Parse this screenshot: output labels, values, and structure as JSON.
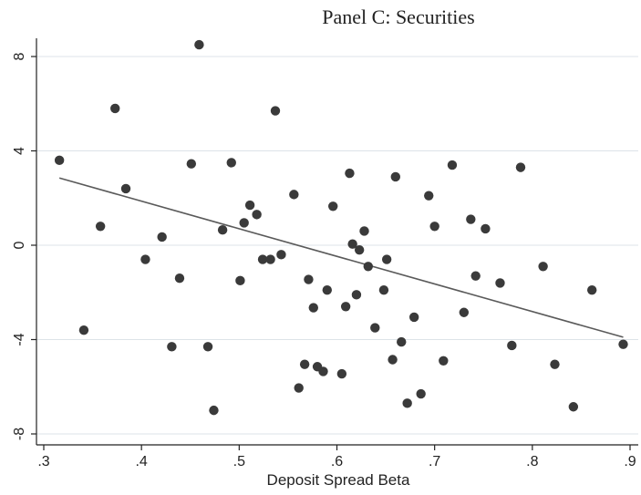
{
  "chart_data": {
    "type": "scatter",
    "title": "Panel C: Securities",
    "xlabel": "Deposit Spread Beta",
    "ylabel": "",
    "xlim": [
      0.3,
      0.9
    ],
    "ylim": [
      -8,
      8
    ],
    "x_ticks": [
      0.3,
      0.4,
      0.5,
      0.6,
      0.7,
      0.8,
      0.9
    ],
    "x_tick_labels": [
      ".3",
      ".4",
      ".5",
      ".6",
      ".7",
      ".8",
      ".9"
    ],
    "y_ticks": [
      -8,
      -4,
      0,
      4,
      8
    ],
    "y_tick_labels": [
      "-8",
      "-4",
      "0",
      "4",
      "8"
    ],
    "grid": true,
    "points": [
      {
        "x": 0.316,
        "y": 3.6
      },
      {
        "x": 0.341,
        "y": -3.6
      },
      {
        "x": 0.358,
        "y": 0.8
      },
      {
        "x": 0.373,
        "y": 5.8
      },
      {
        "x": 0.384,
        "y": 2.4
      },
      {
        "x": 0.404,
        "y": -0.6
      },
      {
        "x": 0.421,
        "y": 0.35
      },
      {
        "x": 0.431,
        "y": -4.3
      },
      {
        "x": 0.439,
        "y": -1.4
      },
      {
        "x": 0.451,
        "y": 3.45
      },
      {
        "x": 0.459,
        "y": 8.5
      },
      {
        "x": 0.468,
        "y": -4.3
      },
      {
        "x": 0.474,
        "y": -7.0
      },
      {
        "x": 0.483,
        "y": 0.65
      },
      {
        "x": 0.492,
        "y": 3.5
      },
      {
        "x": 0.501,
        "y": -1.5
      },
      {
        "x": 0.505,
        "y": 0.95
      },
      {
        "x": 0.511,
        "y": 1.7
      },
      {
        "x": 0.518,
        "y": 1.3
      },
      {
        "x": 0.524,
        "y": -0.6
      },
      {
        "x": 0.532,
        "y": -0.6
      },
      {
        "x": 0.537,
        "y": 5.7
      },
      {
        "x": 0.543,
        "y": -0.4
      },
      {
        "x": 0.556,
        "y": 2.15
      },
      {
        "x": 0.561,
        "y": -6.05
      },
      {
        "x": 0.567,
        "y": -5.05
      },
      {
        "x": 0.571,
        "y": -1.45
      },
      {
        "x": 0.576,
        "y": -2.65
      },
      {
        "x": 0.58,
        "y": -5.15
      },
      {
        "x": 0.586,
        "y": -5.35
      },
      {
        "x": 0.59,
        "y": -1.9
      },
      {
        "x": 0.596,
        "y": 1.65
      },
      {
        "x": 0.605,
        "y": -5.45
      },
      {
        "x": 0.609,
        "y": -2.6
      },
      {
        "x": 0.613,
        "y": 3.05
      },
      {
        "x": 0.616,
        "y": 0.05
      },
      {
        "x": 0.62,
        "y": -2.1
      },
      {
        "x": 0.623,
        "y": -0.2
      },
      {
        "x": 0.628,
        "y": 0.6
      },
      {
        "x": 0.632,
        "y": -0.9
      },
      {
        "x": 0.639,
        "y": -3.5
      },
      {
        "x": 0.648,
        "y": -1.9
      },
      {
        "x": 0.651,
        "y": -0.6
      },
      {
        "x": 0.657,
        "y": -4.85
      },
      {
        "x": 0.66,
        "y": 2.9
      },
      {
        "x": 0.666,
        "y": -4.1
      },
      {
        "x": 0.672,
        "y": -6.7
      },
      {
        "x": 0.679,
        "y": -3.05
      },
      {
        "x": 0.686,
        "y": -6.3
      },
      {
        "x": 0.694,
        "y": 2.1
      },
      {
        "x": 0.7,
        "y": 0.8
      },
      {
        "x": 0.709,
        "y": -4.9
      },
      {
        "x": 0.718,
        "y": 3.4
      },
      {
        "x": 0.73,
        "y": -2.85
      },
      {
        "x": 0.737,
        "y": 1.1
      },
      {
        "x": 0.742,
        "y": -1.3
      },
      {
        "x": 0.752,
        "y": 0.7
      },
      {
        "x": 0.767,
        "y": -1.6
      },
      {
        "x": 0.779,
        "y": -4.25
      },
      {
        "x": 0.788,
        "y": 3.3
      },
      {
        "x": 0.811,
        "y": -0.9
      },
      {
        "x": 0.823,
        "y": -5.05
      },
      {
        "x": 0.842,
        "y": -6.85
      },
      {
        "x": 0.861,
        "y": -1.9
      },
      {
        "x": 0.893,
        "y": -4.2
      }
    ],
    "fit_line": {
      "x": [
        0.316,
        0.893
      ],
      "y": [
        2.85,
        -3.9
      ]
    }
  }
}
